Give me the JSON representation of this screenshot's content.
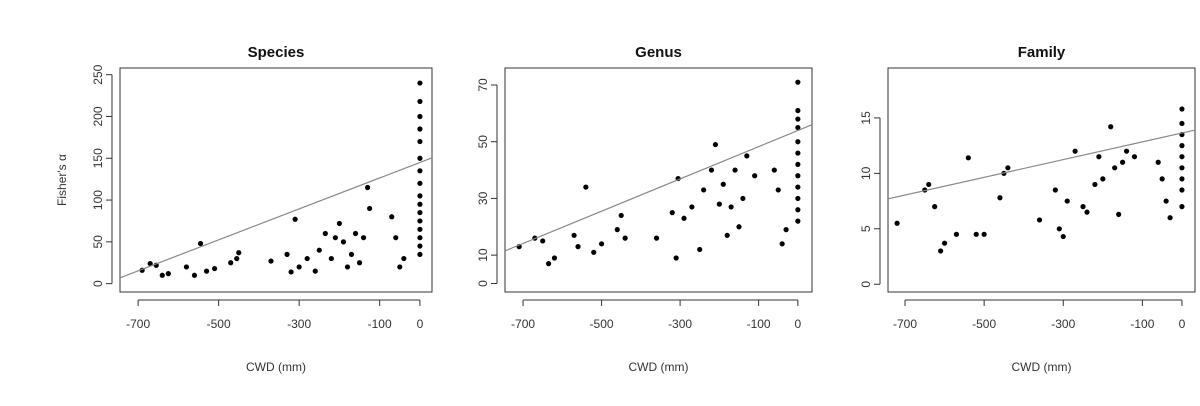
{
  "chart_data": [
    {
      "type": "scatter",
      "title": "Species",
      "xlabel": "CWD (mm)",
      "ylabel": "Fisher's α",
      "color": "#000000",
      "fit_color": "#888888",
      "xlim": [
        -745,
        30
      ],
      "ylim": [
        -10,
        258
      ],
      "xticks": [
        -700,
        -500,
        -300,
        -100,
        0
      ],
      "yticks": [
        0,
        50,
        100,
        150,
        200,
        250
      ],
      "x": [
        -690,
        -670,
        -655,
        -640,
        -625,
        -580,
        -560,
        -545,
        -530,
        -510,
        -470,
        -455,
        -450,
        -370,
        -330,
        -320,
        -310,
        -300,
        -280,
        -260,
        -250,
        -235,
        -220,
        -210,
        -200,
        -190,
        -180,
        -170,
        -160,
        -150,
        -140,
        -130,
        -125,
        -70,
        -60,
        -50,
        -40,
        0,
        0,
        0,
        0,
        0,
        0,
        0,
        0,
        0,
        0,
        0,
        0,
        0,
        0,
        0,
        0
      ],
      "y": [
        16,
        24,
        22,
        10,
        12,
        20,
        10,
        48,
        15,
        18,
        25,
        30,
        37,
        27,
        35,
        14,
        77,
        20,
        30,
        15,
        40,
        60,
        30,
        55,
        72,
        50,
        20,
        35,
        60,
        25,
        55,
        115,
        90,
        80,
        55,
        20,
        30,
        240,
        218,
        200,
        185,
        170,
        150,
        135,
        120,
        105,
        95,
        85,
        75,
        65,
        55,
        45,
        35
      ],
      "fit": {
        "x": [
          -745,
          30
        ],
        "y": [
          7,
          150.5
        ]
      }
    },
    {
      "type": "scatter",
      "title": "Genus",
      "xlabel": "CWD (mm)",
      "color": "#000000",
      "fit_color": "#888888",
      "xlim": [
        -746,
        36
      ],
      "ylim": [
        -3,
        76
      ],
      "xticks": [
        -700,
        -500,
        -300,
        -100,
        0
      ],
      "yticks": [
        0,
        10,
        30,
        50,
        70
      ],
      "x": [
        -710,
        -670,
        -650,
        -635,
        -620,
        -570,
        -560,
        -540,
        -520,
        -500,
        -460,
        -450,
        -440,
        -360,
        -320,
        -310,
        -305,
        -290,
        -270,
        -250,
        -240,
        -220,
        -210,
        -200,
        -190,
        -180,
        -170,
        -160,
        -150,
        -140,
        -130,
        -110,
        -60,
        -50,
        -40,
        -30,
        0,
        0,
        0,
        0,
        0,
        0,
        0,
        0,
        0,
        0,
        0,
        0
      ],
      "y": [
        13,
        16,
        15,
        7,
        9,
        17,
        13,
        34,
        11,
        14,
        19,
        24,
        16,
        16,
        25,
        9,
        37,
        23,
        27,
        12,
        33,
        40,
        49,
        28,
        35,
        17,
        27,
        40,
        20,
        30,
        45,
        38,
        40,
        33,
        14,
        19,
        71,
        61,
        58,
        55,
        50,
        46,
        42,
        38,
        34,
        30,
        26,
        22
      ],
      "fit": {
        "x": [
          -746,
          36
        ],
        "y": [
          11.5,
          56
        ]
      }
    },
    {
      "type": "scatter",
      "title": "Family",
      "xlabel": "CWD (mm)",
      "color": "#000000",
      "fit_color": "#888888",
      "xlim": [
        -743,
        33
      ],
      "ylim": [
        -0.7,
        19.5
      ],
      "xticks": [
        -700,
        -500,
        -300,
        -100,
        0
      ],
      "yticks": [
        0,
        5,
        10,
        15
      ],
      "x": [
        -720,
        -650,
        -640,
        -625,
        -610,
        -600,
        -570,
        -540,
        -520,
        -500,
        -460,
        -450,
        -440,
        -360,
        -320,
        -310,
        -300,
        -290,
        -270,
        -250,
        -240,
        -220,
        -210,
        -200,
        -180,
        -170,
        -160,
        -150,
        -140,
        -120,
        -60,
        -50,
        -40,
        -30,
        0,
        0,
        0,
        0,
        0,
        0,
        0,
        0,
        0
      ],
      "y": [
        5.5,
        8.5,
        9,
        7,
        3,
        3.7,
        4.5,
        11.4,
        4.5,
        4.5,
        7.8,
        10,
        10.5,
        5.8,
        8.5,
        5,
        4.3,
        7.5,
        12,
        7,
        6.5,
        9,
        11.5,
        9.5,
        14.2,
        10.5,
        6.3,
        11,
        12,
        11.5,
        11,
        9.5,
        7.5,
        6,
        15.8,
        14.5,
        13.5,
        12.5,
        11.5,
        10.5,
        9.5,
        8.5,
        7
      ],
      "fit": {
        "x": [
          -743,
          33
        ],
        "y": [
          7.7,
          13.9
        ]
      }
    }
  ]
}
